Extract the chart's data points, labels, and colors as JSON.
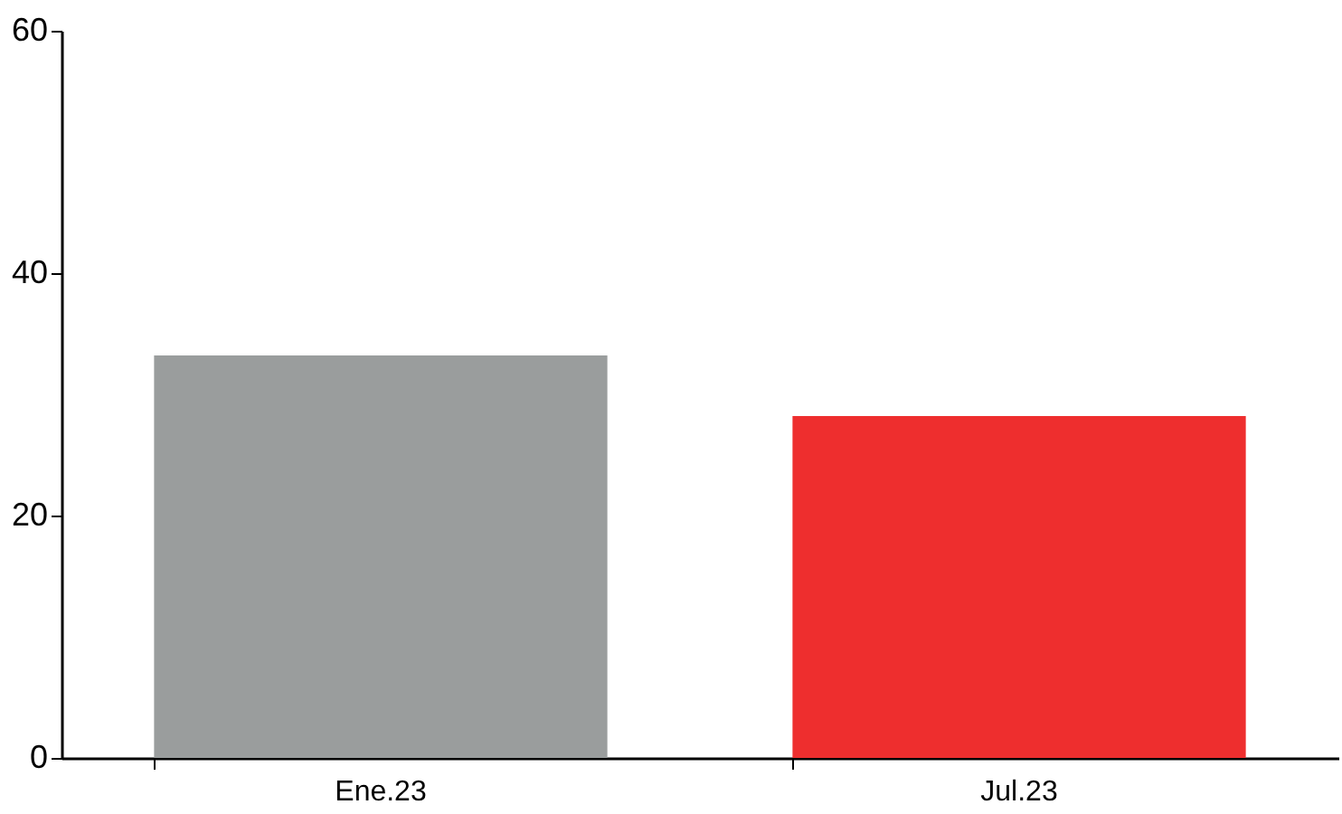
{
  "chart_data": {
    "type": "bar",
    "categories": [
      "Ene.23",
      "Jul.23"
    ],
    "values": [
      33.2,
      28.2
    ],
    "colors": [
      "#9a9d9d",
      "#ee2e2e"
    ],
    "ylim": [
      0,
      60
    ],
    "yticks": [
      0,
      20,
      40,
      60
    ],
    "grid": false
  }
}
